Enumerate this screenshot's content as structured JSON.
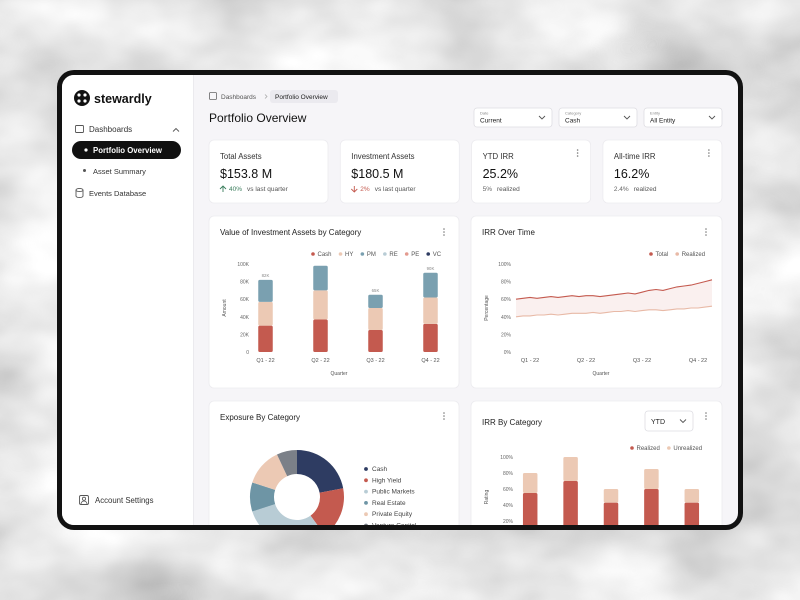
{
  "sidebar": {
    "brand": "stewardly",
    "nav": [
      "Dashboards",
      "Portfolio Overview",
      "Asset Summary",
      "Events Database"
    ],
    "footer": "Account Settings"
  },
  "breadcrumb": [
    "Dashboards",
    "Portfolio Overview"
  ],
  "title": "Portfolio Overview",
  "filters": [
    {
      "label": "Date",
      "value": "Current"
    },
    {
      "label": "Category",
      "value": "Cash"
    },
    {
      "label": "Entity",
      "value": "All Entity"
    }
  ],
  "kpis": [
    {
      "title": "Total Assets",
      "value": "$153.8 M",
      "change": "40%",
      "trend": "up",
      "note": "vs last quarter"
    },
    {
      "title": "Investment Assets",
      "value": "$180.5 M",
      "change": "2%",
      "trend": "down",
      "note": "vs last quarter"
    },
    {
      "title": "YTD IRR",
      "value": "25.2%",
      "change": "5%",
      "note": "realized"
    },
    {
      "title": "All-time IRR",
      "value": "16.2%",
      "change": "2.4%",
      "note": "realized"
    }
  ],
  "charts": [
    {
      "type": "bar",
      "stacked": true,
      "title": "Value of Investment Assets by Category",
      "categories": [
        "Q1 - 22",
        "Q2 - 22",
        "Q3 - 22",
        "Q4 - 22"
      ],
      "series": [
        {
          "name": "Cash",
          "color": "#c45a4f",
          "values": [
            30000,
            37000,
            25000,
            32000
          ]
        },
        {
          "name": "HY",
          "color": "#ecc9b4",
          "values": [
            27000,
            33000,
            25000,
            30000
          ]
        },
        {
          "name": "PM",
          "color": "#7aa0b0",
          "values": [
            25000,
            28000,
            15000,
            28000
          ]
        },
        {
          "name": "RE",
          "color": "#b8ccd5",
          "values": [
            0,
            0,
            0,
            0
          ]
        },
        {
          "name": "PE",
          "color": "#e39a8f",
          "values": [
            0,
            0,
            0,
            0
          ]
        },
        {
          "name": "VC",
          "color": "#2e3c62",
          "values": [
            0,
            0,
            0,
            0
          ]
        }
      ],
      "total_labels": [
        "82K",
        null,
        "65K",
        "90K"
      ],
      "ylim": [
        0,
        100000
      ],
      "yticks": [
        0,
        {
          "value": 20000,
          "label": "20K"
        },
        {
          "value": 40000,
          "label": "40K"
        },
        {
          "value": 60000,
          "label": "60K"
        },
        {
          "value": 80000,
          "label": "80K"
        },
        {
          "value": 100000,
          "label": "100K"
        }
      ],
      "xlabel": "Quarter",
      "ylabel": "Amount"
    },
    {
      "type": "line",
      "title": "IRR Over Time",
      "fill_between": true,
      "categories": [
        null,
        null,
        "Q1 - 22",
        null,
        null,
        null,
        null,
        null,
        null,
        null,
        "Q2 - 22",
        null,
        null,
        null,
        null,
        null,
        null,
        null,
        "Q3 - 22",
        null,
        null,
        null,
        null,
        null,
        null,
        null,
        "Q4 - 22",
        null,
        null
      ],
      "series": [
        {
          "name": "Total",
          "color": "#c45a4f",
          "values": [
            60,
            61,
            62,
            61,
            62,
            63,
            62,
            63,
            64,
            63,
            64,
            64,
            63,
            64,
            65,
            66,
            67,
            66,
            68,
            70,
            71,
            70,
            72,
            74,
            75,
            76,
            78,
            80,
            82
          ]
        },
        {
          "name": "Realized",
          "color": "#e8b9a6",
          "values": [
            40,
            41,
            41,
            42,
            42,
            43,
            42,
            43,
            44,
            44,
            44,
            45,
            44,
            45,
            46,
            46,
            47,
            46,
            47,
            48,
            48,
            47,
            48,
            49,
            49,
            50,
            50,
            51,
            52
          ]
        }
      ],
      "ylim": [
        0,
        100
      ],
      "yticks": [
        {
          "value": 0,
          "label": "0%"
        },
        {
          "value": 20,
          "label": "20%"
        },
        {
          "value": 40,
          "label": "40%"
        },
        {
          "value": 60,
          "label": "60%"
        },
        {
          "value": 80,
          "label": "80%"
        },
        {
          "value": 100,
          "label": "100%"
        }
      ],
      "xlabel": "Quarter",
      "ylabel": "Percentage"
    },
    {
      "type": "pie",
      "donut": true,
      "title": "Exposure By Category",
      "categories": [
        "Cash",
        "High Yield",
        "Public Markets",
        "Real Estate",
        "Private Equity",
        "Venture Capital"
      ],
      "values": [
        22,
        18,
        30,
        10,
        13,
        7
      ],
      "colors": [
        "#2e3c62",
        "#c45a4f",
        "#b8ccd5",
        "#6e95a5",
        "#ecc9b4",
        "#7b8088"
      ]
    },
    {
      "type": "bar",
      "stacked": true,
      "title": "IRR By Category",
      "control": "YTD",
      "series": [
        {
          "name": "Realized",
          "color": "#c45a4f",
          "values": [
            55,
            70,
            43,
            60,
            43
          ]
        },
        {
          "name": "Unrealized",
          "color": "#ecc9b4",
          "values": [
            25,
            30,
            17,
            25,
            17
          ]
        }
      ],
      "ylim": [
        0,
        100
      ],
      "yticks": [
        {
          "value": 20,
          "label": "20%"
        },
        {
          "value": 40,
          "label": "40%"
        },
        {
          "value": 60,
          "label": "60%"
        },
        {
          "value": 80,
          "label": "80%"
        },
        {
          "value": 100,
          "label": "100%"
        }
      ],
      "ylabel": "Rating"
    }
  ]
}
